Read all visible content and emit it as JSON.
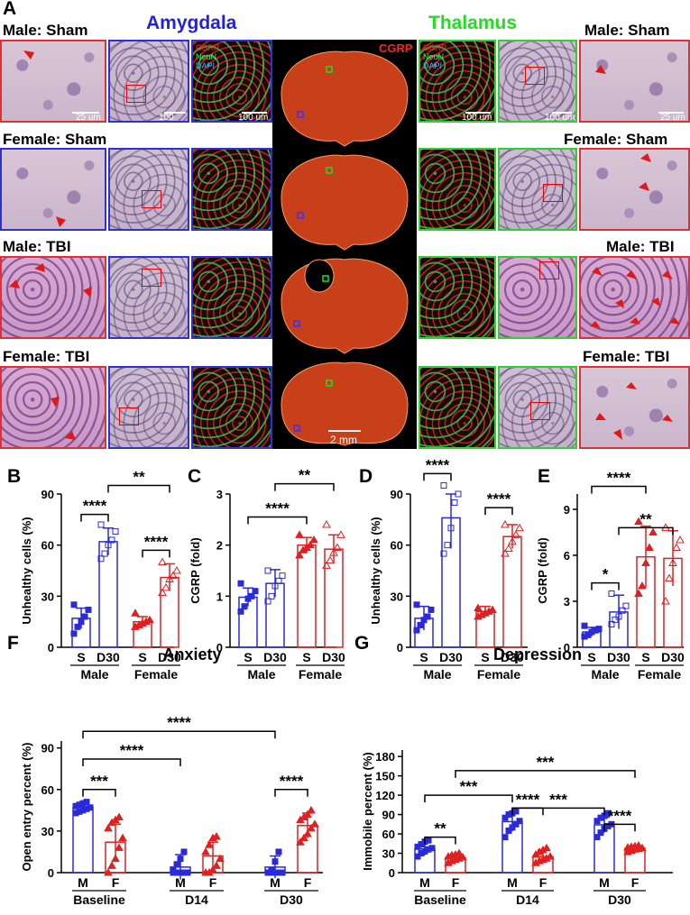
{
  "panelA": {
    "letter": "A",
    "left_header": "Amygdala",
    "right_header": "Thalamus",
    "left_color": "#2222dd",
    "right_color": "#22dd22",
    "row_labels": [
      "Male: Sham",
      "Female: Sham",
      "Male: TBI",
      "Female: TBI"
    ],
    "scale_25": "25 um",
    "scale_100": "100 um",
    "scale_2mm": "2 mm",
    "cgrp_label": "CGRP",
    "channels": [
      "CGRP",
      "NeuN",
      "DAPI"
    ]
  },
  "chart_data": [
    {
      "panel": "B",
      "type": "bar",
      "ylabel": "Unhealthy cells (%)",
      "ylim": [
        0,
        90
      ],
      "yticks": [
        0,
        30,
        60,
        90
      ],
      "categories": [
        "S",
        "D30",
        "S",
        "D30"
      ],
      "groups": [
        "Male",
        "Female"
      ],
      "values": [
        17,
        62,
        15,
        41
      ],
      "errors": [
        6,
        8,
        3,
        8
      ],
      "colors": [
        "#2a2adb",
        "#2a2adb",
        "#e02020",
        "#e02020"
      ],
      "points": [
        [
          8,
          12,
          15,
          18,
          22,
          25
        ],
        [
          52,
          55,
          60,
          63,
          68,
          72
        ],
        [
          12,
          13,
          14,
          15,
          16,
          20
        ],
        [
          32,
          35,
          40,
          42,
          45,
          50
        ]
      ],
      "significance": [
        {
          "label": "****",
          "from": 0,
          "to": 1,
          "y": 78
        },
        {
          "label": "****",
          "from": 2,
          "to": 3,
          "y": 57
        },
        {
          "label": "**",
          "from": 1,
          "to": 3,
          "y": 95
        }
      ]
    },
    {
      "panel": "C",
      "type": "bar",
      "ylabel": "CGRP (fold)",
      "ylim": [
        0,
        3
      ],
      "yticks": [
        0,
        1,
        2,
        3
      ],
      "categories": [
        "S",
        "D30",
        "S",
        "D30"
      ],
      "groups": [
        "Male",
        "Female"
      ],
      "values": [
        0.98,
        1.25,
        2.0,
        1.92
      ],
      "errors": [
        0.18,
        0.27,
        0.15,
        0.28
      ],
      "colors": [
        "#2a2adb",
        "#2a2adb",
        "#e02020",
        "#e02020"
      ],
      "points": [
        [
          0.7,
          0.8,
          0.95,
          1.0,
          1.1,
          1.25
        ],
        [
          0.9,
          1.0,
          1.2,
          1.3,
          1.4,
          1.5
        ],
        [
          1.8,
          1.9,
          1.95,
          2.0,
          2.1,
          2.2
        ],
        [
          1.6,
          1.7,
          1.85,
          1.95,
          2.2,
          2.4
        ]
      ],
      "significance": [
        {
          "label": "****",
          "from": 0,
          "to": 2,
          "y": 2.55
        },
        {
          "label": "**",
          "from": 1,
          "to": 3,
          "y": 3.2
        }
      ]
    },
    {
      "panel": "D",
      "type": "bar",
      "ylabel": "Unhealthy cells (%)",
      "ylim": [
        0,
        90
      ],
      "yticks": [
        0,
        30,
        60,
        90
      ],
      "categories": [
        "S",
        "D30",
        "S",
        "D30"
      ],
      "groups": [
        "Male",
        "Female"
      ],
      "values": [
        17,
        76,
        21,
        65
      ],
      "errors": [
        7,
        18,
        3,
        7
      ],
      "colors": [
        "#2a2adb",
        "#2a2adb",
        "#e02020",
        "#e02020"
      ],
      "points": [
        [
          10,
          13,
          16,
          18,
          22,
          25
        ],
        [
          55,
          60,
          70,
          85,
          90,
          95
        ],
        [
          18,
          19,
          20,
          21,
          22,
          23
        ],
        [
          55,
          58,
          62,
          66,
          70,
          72
        ]
      ],
      "significance": [
        {
          "label": "****",
          "from": 0,
          "to": 1,
          "y": 102
        },
        {
          "label": "****",
          "from": 2,
          "to": 3,
          "y": 82
        }
      ]
    },
    {
      "panel": "E",
      "type": "bar",
      "ylabel": "CGRP (fold)",
      "ylim": [
        0,
        10
      ],
      "yticks": [
        0,
        3,
        6,
        9
      ],
      "categories": [
        "S",
        "D30",
        "S",
        "D30"
      ],
      "groups": [
        "Male",
        "Female"
      ],
      "values": [
        1.0,
        2.3,
        5.9,
        5.8
      ],
      "errors": [
        0.3,
        1.1,
        2.0,
        1.8
      ],
      "colors": [
        "#2a2adb",
        "#2a2adb",
        "#e02020",
        "#e02020"
      ],
      "points": [
        [
          0.7,
          0.8,
          1.0,
          1.1,
          1.2,
          1.4
        ],
        [
          1.5,
          1.8,
          2.0,
          2.4,
          2.7,
          3.5
        ],
        [
          3.5,
          4.0,
          5.5,
          6.5,
          7.5,
          8.2
        ],
        [
          3.0,
          4.5,
          5.5,
          6.5,
          7.0,
          7.8
        ]
      ],
      "significance": [
        {
          "label": "*",
          "from": 0,
          "to": 1,
          "y": 4.2
        },
        {
          "label": "**",
          "from": 1,
          "to": 3,
          "y": 7.8
        },
        {
          "label": "****",
          "from": 0,
          "to": 2,
          "y": 10.5
        }
      ]
    },
    {
      "panel": "F",
      "type": "bar",
      "title": "Anxiety",
      "ylabel": "Open entry percent (%)",
      "ylim": [
        0,
        95
      ],
      "yticks": [
        0,
        30,
        60,
        90
      ],
      "categories": [
        "M",
        "F",
        "M",
        "F",
        "M",
        "F"
      ],
      "groups": [
        "Baseline",
        "D14",
        "D30"
      ],
      "values": [
        47,
        22,
        4,
        12,
        4,
        34
      ],
      "errors": [
        3,
        13,
        9,
        10,
        8,
        9
      ],
      "colors": [
        "#2a2adb",
        "#e02020",
        "#2a2adb",
        "#e02020",
        "#2a2adb",
        "#e02020"
      ],
      "points": [
        [
          43,
          44,
          45,
          46,
          47,
          48,
          49,
          50,
          51
        ],
        [
          0,
          5,
          10,
          18,
          25,
          32,
          36,
          38,
          40
        ],
        [
          0,
          0,
          0,
          0,
          0,
          2,
          6,
          10,
          15
        ],
        [
          0,
          0,
          2,
          5,
          10,
          15,
          20,
          25,
          26
        ],
        [
          0,
          0,
          0,
          0,
          0,
          0,
          2,
          8,
          15
        ],
        [
          22,
          25,
          28,
          32,
          35,
          38,
          40,
          42,
          45
        ]
      ],
      "significance": [
        {
          "label": "***",
          "from": 0,
          "to": 1,
          "y": 60
        },
        {
          "label": "****",
          "from": 4,
          "to": 5,
          "y": 60
        },
        {
          "label": "****",
          "from": 0,
          "to": 2,
          "y": 82
        },
        {
          "label": "****",
          "from": 0,
          "to": 4,
          "y": 102
        }
      ]
    },
    {
      "panel": "G",
      "type": "bar",
      "title": "Depression",
      "ylabel": "Immobile percent (%)",
      "ylim": [
        0,
        190
      ],
      "yticks": [
        0,
        30,
        60,
        90,
        120,
        150,
        180
      ],
      "categories": [
        "M",
        "F",
        "M",
        "F",
        "M",
        "F"
      ],
      "groups": [
        "Baseline",
        "D14",
        "D30"
      ],
      "values": [
        37,
        23,
        79,
        25,
        74,
        38
      ],
      "errors": [
        10,
        6,
        15,
        10,
        12,
        4
      ],
      "colors": [
        "#2a2adb",
        "#e02020",
        "#2a2adb",
        "#e02020",
        "#2a2adb",
        "#e02020"
      ],
      "points": [
        [
          25,
          30,
          33,
          36,
          38,
          40,
          44,
          48,
          50
        ],
        [
          15,
          18,
          20,
          22,
          24,
          25,
          27,
          28,
          30
        ],
        [
          55,
          65,
          70,
          75,
          80,
          85,
          90,
          92,
          95
        ],
        [
          15,
          18,
          20,
          22,
          25,
          28,
          32,
          35,
          38
        ],
        [
          55,
          62,
          68,
          72,
          75,
          80,
          85,
          88,
          92
        ],
        [
          32,
          34,
          36,
          37,
          38,
          39,
          40,
          41,
          42
        ]
      ],
      "significance": [
        {
          "label": "**",
          "from": 0,
          "to": 1,
          "y": 55
        },
        {
          "label": "****",
          "from": 2,
          "to": 3,
          "y": 100
        },
        {
          "label": "****",
          "from": 4,
          "to": 5,
          "y": 75
        },
        {
          "label": "***",
          "from": 0,
          "to": 2,
          "y": 120
        },
        {
          "label": "***",
          "from": 2,
          "to": 4,
          "y": 100
        },
        {
          "label": "***",
          "from": 1,
          "to": 5,
          "y": 158
        }
      ]
    }
  ]
}
